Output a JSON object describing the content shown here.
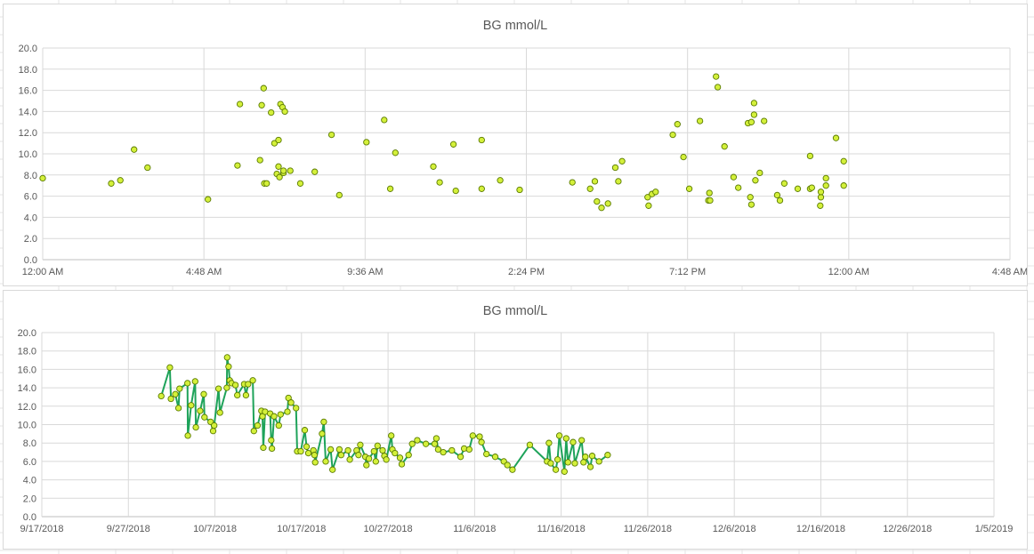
{
  "colors": {
    "marker_fill": "#d4f03a",
    "marker_stroke": "#5a7a00",
    "line": "#1ea35a",
    "grid": "#d9d9d9",
    "text": "#595959"
  },
  "chart_data": [
    {
      "type": "scatter",
      "title": "BG mmol/L",
      "xlabel": "",
      "ylabel": "",
      "x_unit": "time of day (hours from 12:00 AM)",
      "xlim": [
        0,
        28.8
      ],
      "ylim": [
        0,
        20
      ],
      "x_tick_values": [
        0,
        4.8,
        9.6,
        14.4,
        19.2,
        24,
        28.8
      ],
      "x_tick_labels": [
        "12:00 AM",
        "4:48 AM",
        "9:36 AM",
        "2:24 PM",
        "7:12 PM",
        "12:00 AM",
        "4:48 AM"
      ],
      "y_tick_labels": [
        "0.0",
        "2.0",
        "4.0",
        "6.0",
        "8.0",
        "10.0",
        "12.0",
        "14.0",
        "16.0",
        "18.0",
        "20.0"
      ],
      "grid": true,
      "legend": "none",
      "series": [
        {
          "points": [
            [
              0.0,
              7.7
            ],
            [
              2.04,
              7.2
            ],
            [
              2.31,
              7.5
            ],
            [
              2.72,
              10.4
            ],
            [
              3.12,
              8.7
            ],
            [
              4.92,
              5.7
            ],
            [
              5.8,
              8.9
            ],
            [
              5.87,
              14.7
            ],
            [
              6.47,
              9.4
            ],
            [
              6.52,
              14.6
            ],
            [
              6.58,
              16.2
            ],
            [
              6.6,
              7.2
            ],
            [
              6.67,
              7.2
            ],
            [
              6.8,
              13.9
            ],
            [
              6.9,
              11.0
            ],
            [
              6.97,
              8.1
            ],
            [
              7.02,
              11.3
            ],
            [
              7.02,
              8.8
            ],
            [
              7.05,
              7.8
            ],
            [
              7.08,
              14.7
            ],
            [
              7.14,
              14.4
            ],
            [
              7.17,
              8.2
            ],
            [
              7.17,
              8.4
            ],
            [
              7.21,
              14.0
            ],
            [
              7.37,
              8.4
            ],
            [
              7.67,
              7.2
            ],
            [
              8.1,
              8.3
            ],
            [
              8.6,
              11.8
            ],
            [
              8.83,
              6.1
            ],
            [
              9.64,
              11.1
            ],
            [
              10.17,
              13.2
            ],
            [
              10.35,
              6.7
            ],
            [
              10.5,
              10.1
            ],
            [
              11.63,
              8.8
            ],
            [
              11.82,
              7.3
            ],
            [
              12.23,
              10.9
            ],
            [
              12.3,
              6.5
            ],
            [
              13.07,
              11.3
            ],
            [
              13.07,
              6.7
            ],
            [
              13.62,
              7.5
            ],
            [
              14.2,
              6.6
            ],
            [
              15.77,
              7.3
            ],
            [
              16.3,
              6.7
            ],
            [
              16.44,
              7.4
            ],
            [
              16.5,
              5.5
            ],
            [
              16.64,
              4.9
            ],
            [
              16.83,
              5.3
            ],
            [
              17.05,
              8.7
            ],
            [
              17.14,
              7.4
            ],
            [
              17.25,
              9.3
            ],
            [
              18.01,
              5.9
            ],
            [
              18.04,
              5.1
            ],
            [
              18.14,
              6.2
            ],
            [
              18.25,
              6.4
            ],
            [
              18.76,
              11.8
            ],
            [
              18.9,
              12.8
            ],
            [
              19.08,
              9.7
            ],
            [
              19.25,
              6.7
            ],
            [
              19.57,
              13.1
            ],
            [
              19.82,
              5.6
            ],
            [
              19.85,
              6.3
            ],
            [
              19.87,
              5.6
            ],
            [
              20.05,
              17.3
            ],
            [
              20.1,
              16.3
            ],
            [
              20.3,
              10.7
            ],
            [
              20.57,
              7.8
            ],
            [
              20.71,
              6.8
            ],
            [
              21.0,
              12.9
            ],
            [
              21.07,
              5.9
            ],
            [
              21.1,
              5.2
            ],
            [
              21.1,
              13.0
            ],
            [
              21.18,
              14.8
            ],
            [
              21.18,
              13.7
            ],
            [
              21.22,
              7.5
            ],
            [
              21.35,
              8.2
            ],
            [
              21.48,
              13.1
            ],
            [
              21.87,
              6.1
            ],
            [
              21.95,
              5.6
            ],
            [
              22.08,
              7.2
            ],
            [
              22.48,
              6.7
            ],
            [
              22.85,
              6.7
            ],
            [
              22.85,
              9.8
            ],
            [
              22.9,
              6.8
            ],
            [
              23.15,
              5.1
            ],
            [
              23.17,
              5.9
            ],
            [
              23.17,
              6.4
            ],
            [
              23.32,
              7.7
            ],
            [
              23.32,
              7.0
            ],
            [
              23.62,
              11.5
            ],
            [
              23.85,
              7.0
            ],
            [
              23.85,
              9.3
            ]
          ]
        }
      ]
    },
    {
      "type": "line",
      "title": "BG mmol/L",
      "xlabel": "",
      "ylabel": "",
      "x_unit": "date",
      "xlim": [
        "2018-09-17",
        "2019-01-05"
      ],
      "ylim": [
        0,
        20
      ],
      "x_tick_values": [
        "2018-09-17",
        "2018-09-27",
        "2018-10-07",
        "2018-10-17",
        "2018-10-27",
        "2018-11-06",
        "2018-11-16",
        "2018-11-26",
        "2018-12-06",
        "2018-12-16",
        "2018-12-26",
        "2019-01-05"
      ],
      "x_tick_labels": [
        "9/17/2018",
        "9/27/2018",
        "10/7/2018",
        "10/17/2018",
        "10/27/2018",
        "11/6/2018",
        "11/16/2018",
        "11/26/2018",
        "12/6/2018",
        "12/16/2018",
        "12/26/2018",
        "1/5/2019"
      ],
      "y_tick_labels": [
        "0.0",
        "2.0",
        "4.0",
        "6.0",
        "8.0",
        "10.0",
        "12.0",
        "14.0",
        "16.0",
        "18.0",
        "20.0"
      ],
      "grid": true,
      "legend": "none",
      "series": [
        {
          "points": [
            [
              "2018-09-30T19:00",
              13.1
            ],
            [
              "2018-10-01T19:00",
              16.2
            ],
            [
              "2018-10-01T22:00",
              12.8
            ],
            [
              "2018-10-02T10:00",
              13.3
            ],
            [
              "2018-10-02T19:00",
              11.8
            ],
            [
              "2018-10-02T22:00",
              13.9
            ],
            [
              "2018-10-03T20:00",
              14.5
            ],
            [
              "2018-10-03T21:00",
              8.8
            ],
            [
              "2018-10-04T06:00",
              12.1
            ],
            [
              "2018-10-04T17:00",
              14.7
            ],
            [
              "2018-10-04T19:00",
              9.7
            ],
            [
              "2018-10-05T07:00",
              11.5
            ],
            [
              "2018-10-05T17:00",
              13.3
            ],
            [
              "2018-10-05T19:00",
              10.8
            ],
            [
              "2018-10-06T12:00",
              10.3
            ],
            [
              "2018-10-06T19:00",
              9.3
            ],
            [
              "2018-10-06T22:00",
              9.9
            ],
            [
              "2018-10-07T10:00",
              13.9
            ],
            [
              "2018-10-07T14:00",
              11.3
            ],
            [
              "2018-10-08T09:00",
              14.0
            ],
            [
              "2018-10-08T10:00",
              17.3
            ],
            [
              "2018-10-08T14:00",
              16.3
            ],
            [
              "2018-10-08T17:00",
              14.8
            ],
            [
              "2018-10-08T22:00",
              14.5
            ],
            [
              "2018-10-09T09:00",
              14.3
            ],
            [
              "2018-10-09T14:00",
              13.2
            ],
            [
              "2018-10-10T09:00",
              14.4
            ],
            [
              "2018-10-10T14:00",
              13.2
            ],
            [
              "2018-10-10T20:00",
              14.4
            ],
            [
              "2018-10-11T09:00",
              14.8
            ],
            [
              "2018-10-11T12:00",
              9.3
            ],
            [
              "2018-10-11T22:00",
              9.9
            ],
            [
              "2018-10-12T09:00",
              11.5
            ],
            [
              "2018-10-12T12:00",
              10.9
            ],
            [
              "2018-10-12T14:00",
              7.5
            ],
            [
              "2018-10-12T19:00",
              11.4
            ],
            [
              "2018-10-13T09:00",
              11.2
            ],
            [
              "2018-10-13T12:00",
              8.3
            ],
            [
              "2018-10-13T14:00",
              7.4
            ],
            [
              "2018-10-13T20:00",
              10.9
            ],
            [
              "2018-10-14T09:00",
              9.9
            ],
            [
              "2018-10-14T14:00",
              11.1
            ],
            [
              "2018-10-15T09:00",
              11.4
            ],
            [
              "2018-10-15T12:00",
              12.9
            ],
            [
              "2018-10-15T19:00",
              12.4
            ],
            [
              "2018-10-16T09:00",
              11.8
            ],
            [
              "2018-10-16T12:00",
              7.1
            ],
            [
              "2018-10-16T22:00",
              7.1
            ],
            [
              "2018-10-17T09:00",
              9.4
            ],
            [
              "2018-10-17T14:00",
              7.6
            ],
            [
              "2018-10-17T19:00",
              6.9
            ],
            [
              "2018-10-18T09:00",
              7.2
            ],
            [
              "2018-10-18T12:00",
              6.7
            ],
            [
              "2018-10-18T14:00",
              5.9
            ],
            [
              "2018-10-19T09:00",
              9.0
            ],
            [
              "2018-10-19T14:00",
              10.3
            ],
            [
              "2018-10-19T19:00",
              6.0
            ],
            [
              "2018-10-20T09:00",
              7.3
            ],
            [
              "2018-10-20T14:00",
              5.1
            ],
            [
              "2018-10-21T09:00",
              7.3
            ],
            [
              "2018-10-21T14:00",
              6.7
            ],
            [
              "2018-10-22T09:00",
              7.2
            ],
            [
              "2018-10-22T14:00",
              6.2
            ],
            [
              "2018-10-23T09:00",
              7.2
            ],
            [
              "2018-10-23T14:00",
              6.7
            ],
            [
              "2018-10-23T19:00",
              7.8
            ],
            [
              "2018-10-24T09:00",
              6.5
            ],
            [
              "2018-10-24T12:00",
              5.6
            ],
            [
              "2018-10-24T19:00",
              6.3
            ],
            [
              "2018-10-25T09:00",
              7.1
            ],
            [
              "2018-10-25T14:00",
              6.0
            ],
            [
              "2018-10-25T19:00",
              7.7
            ],
            [
              "2018-10-26T09:00",
              7.2
            ],
            [
              "2018-10-26T14:00",
              6.6
            ],
            [
              "2018-10-26T19:00",
              6.2
            ],
            [
              "2018-10-27T09:00",
              8.8
            ],
            [
              "2018-10-27T12:00",
              7.3
            ],
            [
              "2018-10-27T19:00",
              6.9
            ],
            [
              "2018-10-28T09:00",
              6.4
            ],
            [
              "2018-10-28T14:00",
              5.7
            ],
            [
              "2018-10-29T09:00",
              6.7
            ],
            [
              "2018-10-29T19:00",
              7.9
            ],
            [
              "2018-10-30T09:00",
              8.3
            ],
            [
              "2018-10-31T09:00",
              7.9
            ],
            [
              "2018-11-01T09:00",
              7.9
            ],
            [
              "2018-11-01T14:00",
              8.5
            ],
            [
              "2018-11-01T19:00",
              7.3
            ],
            [
              "2018-11-02T09:00",
              7.0
            ],
            [
              "2018-11-03T09:00",
              7.2
            ],
            [
              "2018-11-04T09:00",
              6.5
            ],
            [
              "2018-11-04T19:00",
              7.4
            ],
            [
              "2018-11-05T09:00",
              7.3
            ],
            [
              "2018-11-05T19:00",
              8.8
            ],
            [
              "2018-11-06T14:00",
              8.7
            ],
            [
              "2018-11-06T19:00",
              8.1
            ],
            [
              "2018-11-07T09:00",
              6.8
            ],
            [
              "2018-11-08T09:00",
              6.5
            ],
            [
              "2018-11-09T09:00",
              6.0
            ],
            [
              "2018-11-09T19:00",
              5.6
            ],
            [
              "2018-11-10T09:00",
              5.1
            ],
            [
              "2018-11-12T09:00",
              7.8
            ],
            [
              "2018-11-14T09:00",
              6.0
            ],
            [
              "2018-11-14T14:00",
              8.0
            ],
            [
              "2018-11-14T19:00",
              5.8
            ],
            [
              "2018-11-15T09:00",
              5.1
            ],
            [
              "2018-11-15T14:00",
              6.2
            ],
            [
              "2018-11-15T19:00",
              8.8
            ],
            [
              "2018-11-16T09:00",
              4.9
            ],
            [
              "2018-11-16T14:00",
              8.5
            ],
            [
              "2018-11-16T19:00",
              5.9
            ],
            [
              "2018-11-17T09:00",
              8.1
            ],
            [
              "2018-11-17T14:00",
              5.8
            ],
            [
              "2018-11-18T09:00",
              8.3
            ],
            [
              "2018-11-18T14:00",
              5.9
            ],
            [
              "2018-11-18T19:00",
              6.5
            ],
            [
              "2018-11-19T09:00",
              5.4
            ],
            [
              "2018-11-19T14:00",
              6.6
            ],
            [
              "2018-11-20T09:00",
              6.0
            ],
            [
              "2018-11-21T09:00",
              6.7
            ]
          ]
        }
      ]
    }
  ]
}
